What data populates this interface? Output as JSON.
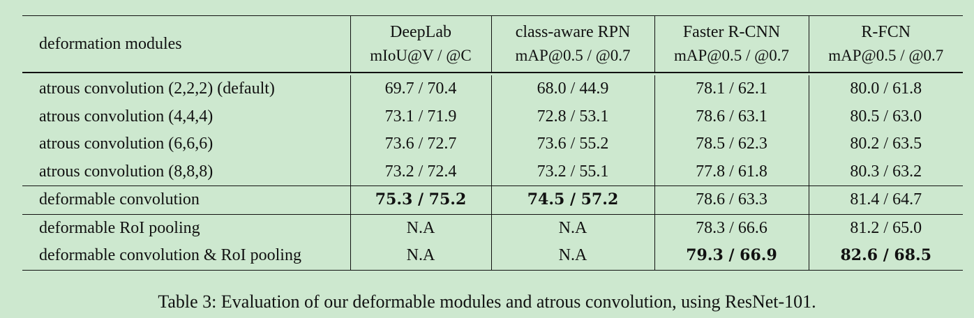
{
  "table": {
    "header": {
      "label": "deformation modules",
      "columns": [
        {
          "name": "DeepLab",
          "metric": "mIoU@V / @C"
        },
        {
          "name": "class-aware RPN",
          "metric": "mAP@0.5 / @0.7"
        },
        {
          "name": "Faster R-CNN",
          "metric": "mAP@0.5 / @0.7"
        },
        {
          "name": "R-FCN",
          "metric": "mAP@0.5 / @0.7"
        }
      ]
    },
    "rows": [
      {
        "label": "atrous convolution (2,2,2) (default)",
        "values": [
          "69.7 / 70.4",
          "68.0 / 44.9",
          "78.1 / 62.1",
          "80.0 / 61.8"
        ]
      },
      {
        "label": "atrous convolution (4,4,4)",
        "values": [
          "73.1 / 71.9",
          "72.8 / 53.1",
          "78.6 / 63.1",
          "80.5 / 63.0"
        ]
      },
      {
        "label": "atrous convolution (6,6,6)",
        "values": [
          "73.6 / 72.7",
          "73.6 / 55.2",
          "78.5 / 62.3",
          "80.2 / 63.5"
        ]
      },
      {
        "label": "atrous convolution (8,8,8)",
        "values": [
          "73.2 / 72.4",
          "73.2 / 55.1",
          "77.8 / 61.8",
          "80.3 / 63.2"
        ]
      },
      {
        "label": "deformable convolution",
        "values": [
          "75.3 / 75.2",
          "74.5 / 57.2",
          "78.6 / 63.3",
          "81.4 / 64.7"
        ]
      },
      {
        "label": "deformable RoI pooling",
        "values": [
          "N.A",
          "N.A",
          "78.3 / 66.6",
          "81.2 / 65.0"
        ]
      },
      {
        "label": "deformable convolution & RoI pooling",
        "values": [
          "N.A",
          "N.A",
          "79.3 / 66.9",
          "82.6 / 68.5"
        ]
      }
    ]
  },
  "caption": "Table 3: Evaluation of our deformable modules and atrous convolution, using ResNet-101."
}
